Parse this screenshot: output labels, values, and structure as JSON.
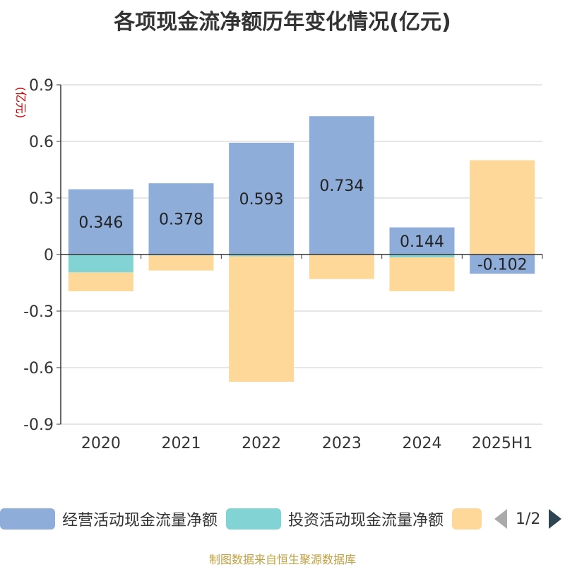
{
  "title": "各项现金流净额历年变化情况(亿元)",
  "unit_label": "(亿元)",
  "footer": "制图数据来自恒生聚源数据库",
  "colors": {
    "operating": "#8eadd9",
    "investing": "#81d3d4",
    "financing": "#fdd899",
    "grid": "#cccccc",
    "axis": "#333333",
    "unit": "#cc0000"
  },
  "legend": {
    "items": [
      {
        "label": "经营活动现金流量净额",
        "color": "#8eadd9"
      },
      {
        "label": "投资活动现金流量净额",
        "color": "#81d3d4"
      },
      {
        "label": "",
        "color": "#fdd899"
      }
    ],
    "page_text": "1/2"
  },
  "chart_data": {
    "type": "bar",
    "stacked": true,
    "categories": [
      "2020",
      "2021",
      "2022",
      "2023",
      "2024",
      "2025H1"
    ],
    "ylim": [
      -0.9,
      0.9
    ],
    "yticks": [
      "0.9",
      "0.6",
      "0.3",
      "0",
      "-0.3",
      "-0.6",
      "-0.9"
    ],
    "grid": true,
    "legend_position": "bottom",
    "series": [
      {
        "name": "经营活动现金流量净额",
        "values": [
          0.346,
          0.378,
          0.593,
          0.734,
          0.144,
          -0.102
        ],
        "labels": [
          "0.346",
          "0.378",
          "0.593",
          "0.734",
          "0.144",
          "-0.102"
        ]
      },
      {
        "name": "投资活动现金流量净额",
        "values": [
          -0.095,
          -0.005,
          -0.01,
          0.0,
          -0.015,
          0.0
        ]
      },
      {
        "values": [
          -0.1,
          -0.08,
          -0.665,
          -0.13,
          -0.18,
          0.5
        ]
      }
    ]
  }
}
